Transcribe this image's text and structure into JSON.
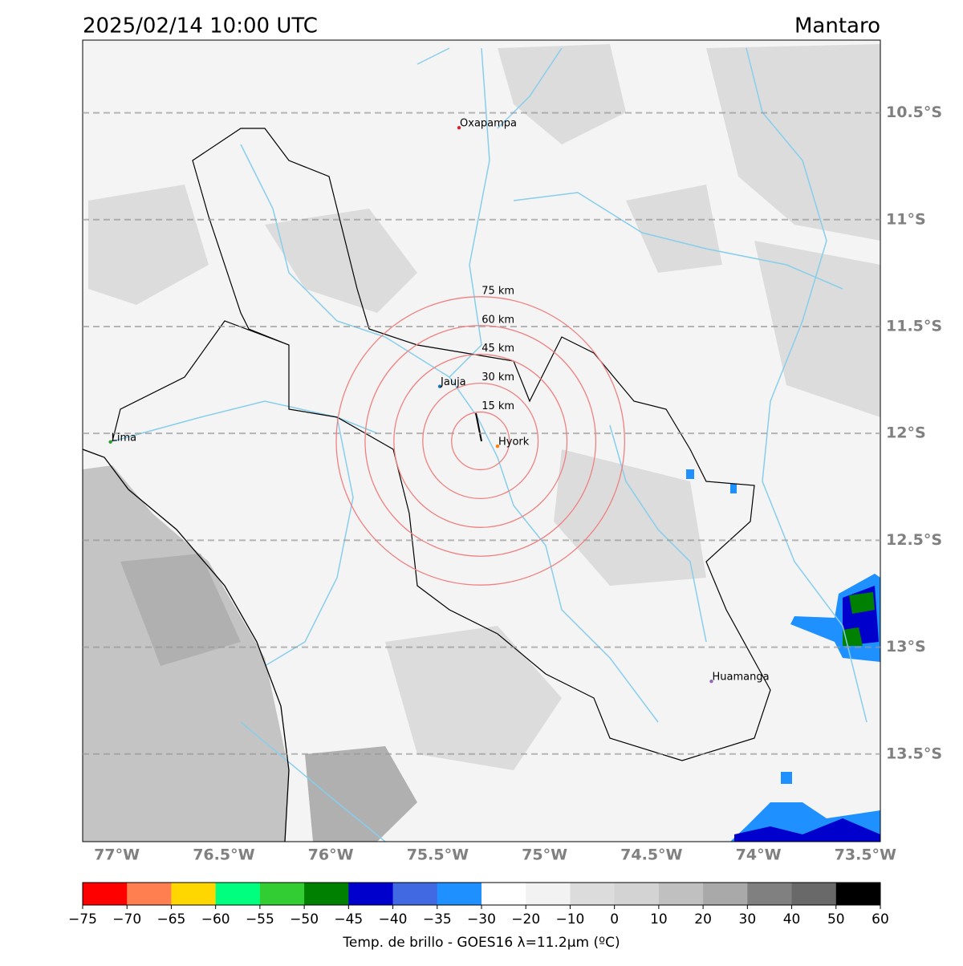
{
  "title": "2025/02/14 10:00 UTC",
  "location": "Mantaro",
  "map": {
    "xlim": [
      -77.16,
      -73.43
    ],
    "ylim": [
      -13.91,
      -10.16
    ],
    "xticks": [
      {
        "value": -77,
        "label": "77°W"
      },
      {
        "value": -76.5,
        "label": "76.5°W"
      },
      {
        "value": -76,
        "label": "76°W"
      },
      {
        "value": -75.5,
        "label": "75.5°W"
      },
      {
        "value": -75,
        "label": "75°W"
      },
      {
        "value": -74.5,
        "label": "74.5°W"
      },
      {
        "value": -74,
        "label": "74°W"
      },
      {
        "value": -73.5,
        "label": "73.5°W"
      }
    ],
    "yticks": [
      {
        "value": -10.5,
        "label": "10.5°S"
      },
      {
        "value": -11,
        "label": "11°S"
      },
      {
        "value": -11.5,
        "label": "11.5°S"
      },
      {
        "value": -12,
        "label": "12°S"
      },
      {
        "value": -12.5,
        "label": "12.5°S"
      },
      {
        "value": -13,
        "label": "13°S"
      },
      {
        "value": -13.5,
        "label": "13.5°S"
      }
    ],
    "grid": true
  },
  "cities": [
    {
      "name": "Oxapampa",
      "lon": -75.4,
      "lat": -10.57,
      "color": "#d62728"
    },
    {
      "name": "Jauja",
      "lon": -75.49,
      "lat": -11.78,
      "color": "#1f77b4"
    },
    {
      "name": "Hyork",
      "lon": -75.22,
      "lat": -12.06,
      "color": "#ff7f0e"
    },
    {
      "name": "Lima",
      "lon": -77.03,
      "lat": -12.04,
      "color": "#2ca02c"
    },
    {
      "name": "Huamanga",
      "lon": -74.22,
      "lat": -13.16,
      "color": "#9467bd"
    }
  ],
  "rings": {
    "center": {
      "lon": -75.3,
      "lat": -12.035
    },
    "color": "#f08080",
    "radii": [
      {
        "value": 15,
        "label": "15 km"
      },
      {
        "value": 30,
        "label": "30 km"
      },
      {
        "value": 45,
        "label": "45 km"
      },
      {
        "value": 60,
        "label": "60 km"
      },
      {
        "value": 75,
        "label": "75 km"
      }
    ]
  },
  "colorbar": {
    "label": "Temp. de brillo - GOES16 λ=11.2μm (ºC)",
    "ticks": [
      {
        "value": -75,
        "label": "−75"
      },
      {
        "value": -70,
        "label": "−70"
      },
      {
        "value": -65,
        "label": "−65"
      },
      {
        "value": -60,
        "label": "−60"
      },
      {
        "value": -55,
        "label": "−55"
      },
      {
        "value": -50,
        "label": "−50"
      },
      {
        "value": -45,
        "label": "−45"
      },
      {
        "value": -40,
        "label": "−40"
      },
      {
        "value": -35,
        "label": "−35"
      },
      {
        "value": -30,
        "label": "−30"
      },
      {
        "value": -20,
        "label": "−20"
      },
      {
        "value": -10,
        "label": "−10"
      },
      0,
      10,
      20,
      30,
      40,
      50,
      60
    ],
    "colors": [
      "#ff0000",
      "#ff7f50",
      "#ffd700",
      "#00ff7f",
      "#32cd32",
      "#008000",
      "#0000cd",
      "#4169e1",
      "#1e90ff",
      "#ffffff",
      "#f2f2f2",
      "#dcdcdc",
      "#d3d3d3",
      "#c0c0c0",
      "#a9a9a9",
      "#808080",
      "#696969",
      "#000000"
    ]
  }
}
